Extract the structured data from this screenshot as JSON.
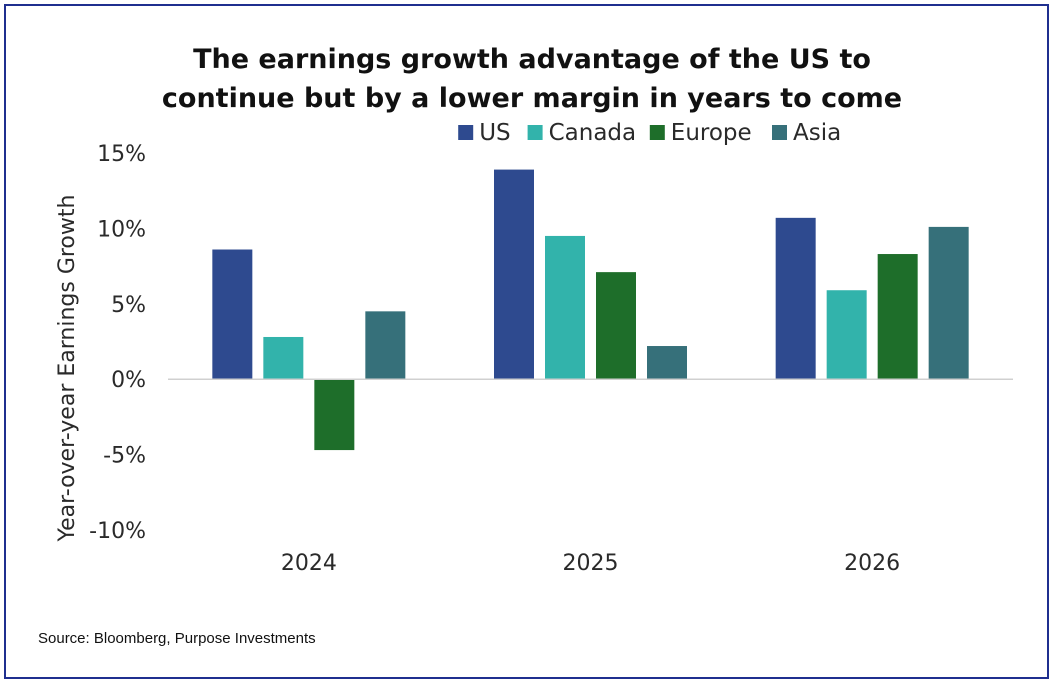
{
  "chart_data": {
    "type": "bar",
    "title_lines": [
      "The earnings growth advantage of the US to",
      "continue but by a lower margin in years to come"
    ],
    "ylabel": "Year-over-year Earnings Growth",
    "xlabel": "",
    "categories": [
      "2024",
      "2025",
      "2026"
    ],
    "ylim": [
      -10,
      15
    ],
    "yticks": [
      15,
      10,
      5,
      0,
      -5,
      -10
    ],
    "ytick_labels": [
      "15%",
      "10%",
      "5%",
      "0%",
      "-5%",
      "-10%"
    ],
    "legend_position": "top",
    "series": [
      {
        "name": "US",
        "color": "#2e4a8f",
        "values": [
          8.6,
          13.9,
          10.7
        ]
      },
      {
        "name": "Canada",
        "color": "#32b3ab",
        "values": [
          2.8,
          9.5,
          5.9
        ]
      },
      {
        "name": "Europe",
        "color": "#1e6e2a",
        "values": [
          -4.7,
          7.1,
          8.3
        ]
      },
      {
        "name": "Asia",
        "color": "#36707a",
        "values": [
          4.5,
          2.2,
          10.1
        ]
      }
    ],
    "grid": false
  },
  "source": "Source: Bloomberg, Purpose Investments"
}
